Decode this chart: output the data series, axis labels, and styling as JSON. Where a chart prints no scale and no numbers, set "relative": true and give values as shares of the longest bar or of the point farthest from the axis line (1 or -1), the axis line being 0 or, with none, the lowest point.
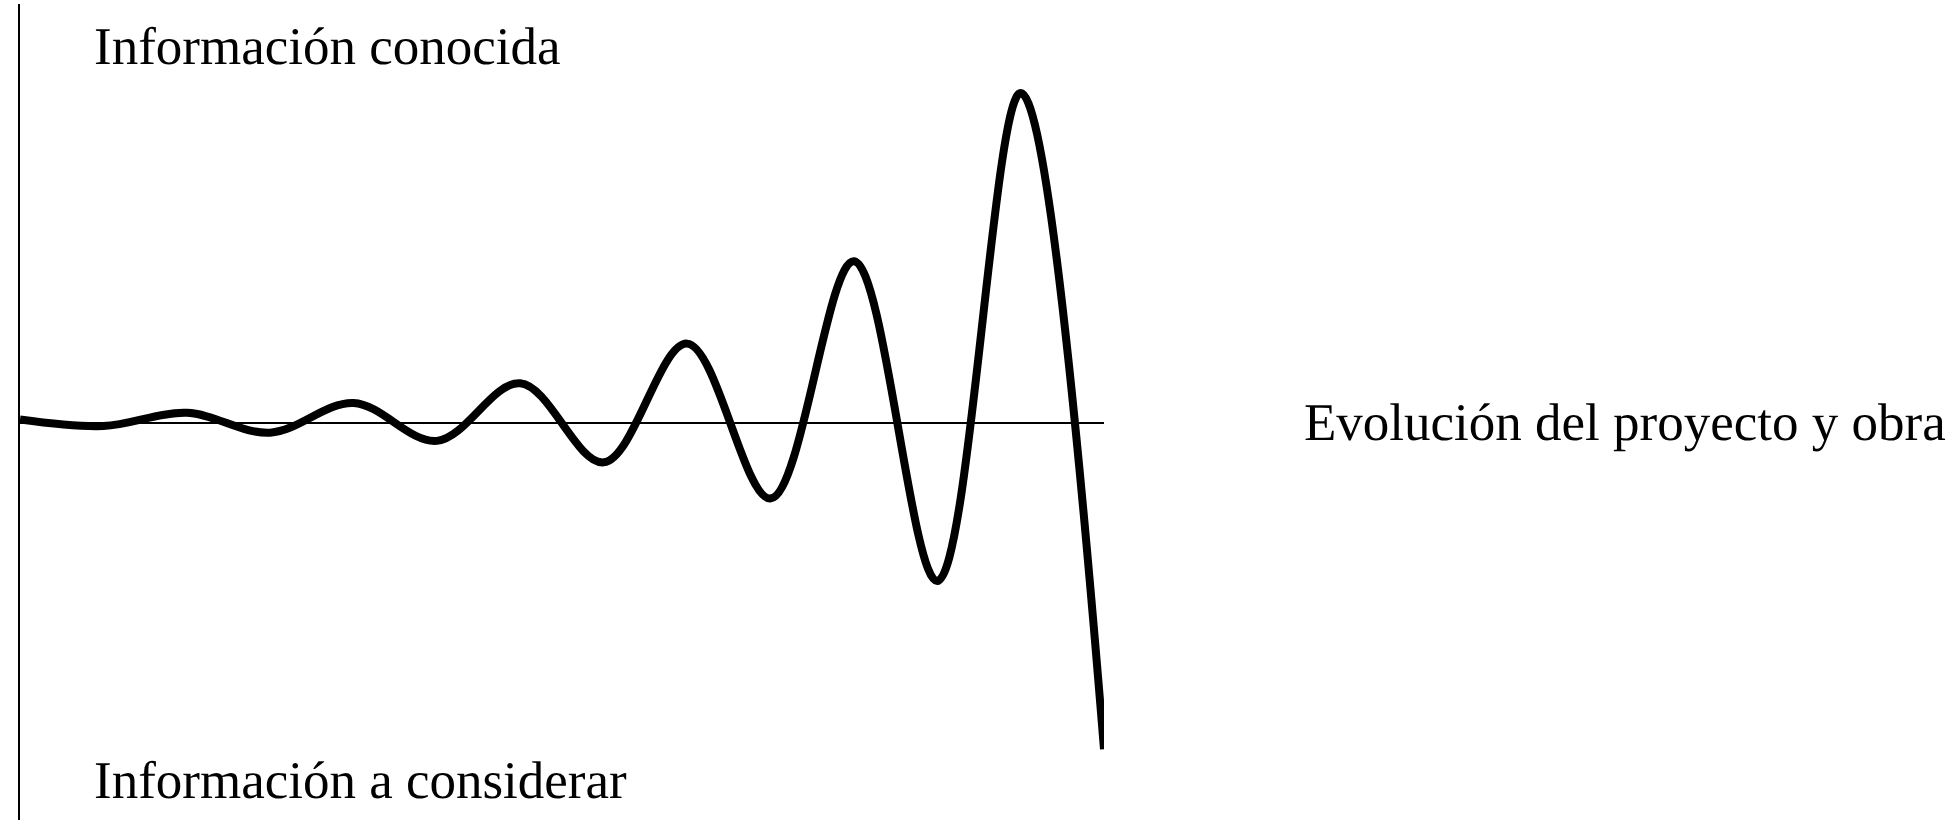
{
  "chart_data": {
    "type": "line",
    "relative": true,
    "xlabel": "Evolución del proyecto y obra",
    "annotations": [
      "Información conocida",
      "Información a considerar"
    ],
    "categories": [
      null,
      null,
      null,
      null,
      null,
      null,
      null,
      null,
      null,
      null,
      null,
      null,
      null,
      null
    ],
    "color": "#000000",
    "values": [
      0.01,
      -0.01,
      0.03,
      -0.03,
      0.06,
      -0.055,
      0.12,
      -0.12,
      0.24,
      -0.23,
      0.49,
      -0.48,
      1,
      -0.99
    ]
  }
}
